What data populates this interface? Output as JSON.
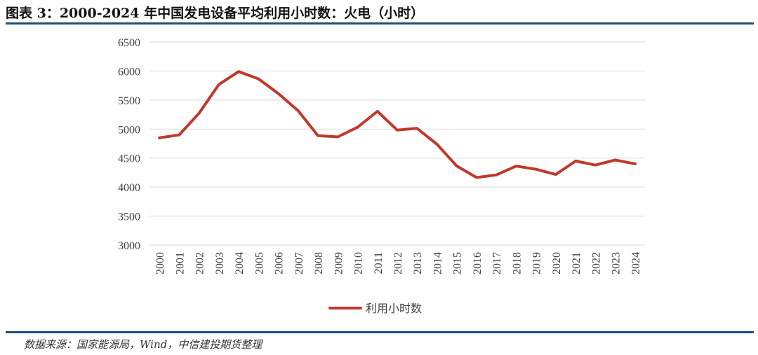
{
  "header": {
    "title": "图表 3：2000-2024 年中国发电设备平均利用小时数：火电（小时）"
  },
  "footer": {
    "source": "数据来源：国家能源局，Wind，中信建投期货整理"
  },
  "colors": {
    "line": "#c0392b",
    "rule": "#1f4e79",
    "grid": "#d9d9d9"
  },
  "chart_data": {
    "type": "line",
    "title": "",
    "xlabel": "",
    "ylabel": "",
    "x": [
      "2000",
      "2001",
      "2002",
      "2003",
      "2004",
      "2005",
      "2006",
      "2007",
      "2008",
      "2009",
      "2010",
      "2011",
      "2012",
      "2013",
      "2014",
      "2015",
      "2016",
      "2017",
      "2018",
      "2019",
      "2020",
      "2021",
      "2022",
      "2023",
      "2024"
    ],
    "series": [
      {
        "name": "利用小时数",
        "values": [
          4848,
          4900,
          5272,
          5767,
          5991,
          5865,
          5612,
          5316,
          4885,
          4865,
          5031,
          5305,
          4982,
          5012,
          4739,
          4364,
          4165,
          4209,
          4361,
          4307,
          4216,
          4448,
          4379,
          4466,
          4400
        ]
      }
    ],
    "ylim": [
      3000,
      6500
    ],
    "yticks": [
      3000,
      3500,
      4000,
      4500,
      5000,
      5500,
      6000,
      6500
    ],
    "grid": true,
    "legend": "bottom-center"
  }
}
